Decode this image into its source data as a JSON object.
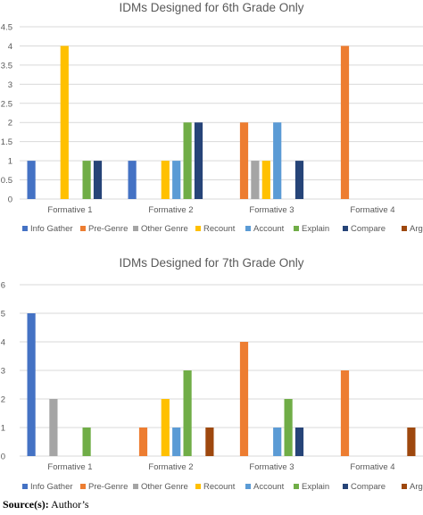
{
  "chart_data": [
    {
      "type": "bar",
      "title": "IDMs Designed for 6th Grade Only",
      "categories": [
        "Formative 1",
        "Formative 2",
        "Formative 3",
        "Formative 4"
      ],
      "ylim": [
        0,
        4.5
      ],
      "yticks": [
        "0",
        "0.5",
        "1",
        "1.5",
        "2",
        "2.5",
        "3",
        "3.5",
        "4",
        "4.5"
      ],
      "grid": true,
      "legend_position": "bottom",
      "series": [
        {
          "name": "Info Gather",
          "color": "#4472C4",
          "values": [
            1,
            1,
            0,
            0
          ]
        },
        {
          "name": "Pre-Genre",
          "color": "#ED7D31",
          "values": [
            0,
            0,
            2,
            4
          ]
        },
        {
          "name": "Other Genre",
          "color": "#A5A5A5",
          "values": [
            0,
            0,
            1,
            0
          ]
        },
        {
          "name": "Recount",
          "color": "#FFC000",
          "values": [
            4,
            1,
            1,
            0
          ]
        },
        {
          "name": "Account",
          "color": "#5B9BD5",
          "values": [
            0,
            1,
            2,
            0
          ]
        },
        {
          "name": "Explain",
          "color": "#70AD47",
          "values": [
            1,
            2,
            0,
            0
          ]
        },
        {
          "name": "Compare",
          "color": "#264478",
          "values": [
            1,
            2,
            1,
            0
          ]
        },
        {
          "name": "Argue",
          "color": "#9E480E",
          "values": [
            0,
            0,
            0,
            0
          ]
        }
      ]
    },
    {
      "type": "bar",
      "title": "IDMs Designed for 7th Grade Only",
      "categories": [
        "Formative 1",
        "Formative 2",
        "Formative 3",
        "Formative 4"
      ],
      "ylim": [
        0,
        6
      ],
      "yticks": [
        "0",
        "1",
        "2",
        "3",
        "4",
        "5",
        "6"
      ],
      "grid": true,
      "legend_position": "bottom",
      "series": [
        {
          "name": "Info Gather",
          "color": "#4472C4",
          "values": [
            5,
            0,
            0,
            0
          ]
        },
        {
          "name": "Pre-Genre",
          "color": "#ED7D31",
          "values": [
            0,
            1,
            4,
            3
          ]
        },
        {
          "name": "Other Genre",
          "color": "#A5A5A5",
          "values": [
            2,
            0,
            0,
            0
          ]
        },
        {
          "name": "Recount",
          "color": "#FFC000",
          "values": [
            0,
            2,
            0,
            0
          ]
        },
        {
          "name": "Account",
          "color": "#5B9BD5",
          "values": [
            0,
            1,
            1,
            0
          ]
        },
        {
          "name": "Explain",
          "color": "#70AD47",
          "values": [
            1,
            3,
            2,
            0
          ]
        },
        {
          "name": "Compare",
          "color": "#264478",
          "values": [
            0,
            0,
            1,
            0
          ]
        },
        {
          "name": "Argue",
          "color": "#9E480E",
          "values": [
            0,
            1,
            0,
            1
          ]
        }
      ]
    }
  ],
  "source": {
    "label": "Source(s):",
    "text": "Author’s"
  }
}
